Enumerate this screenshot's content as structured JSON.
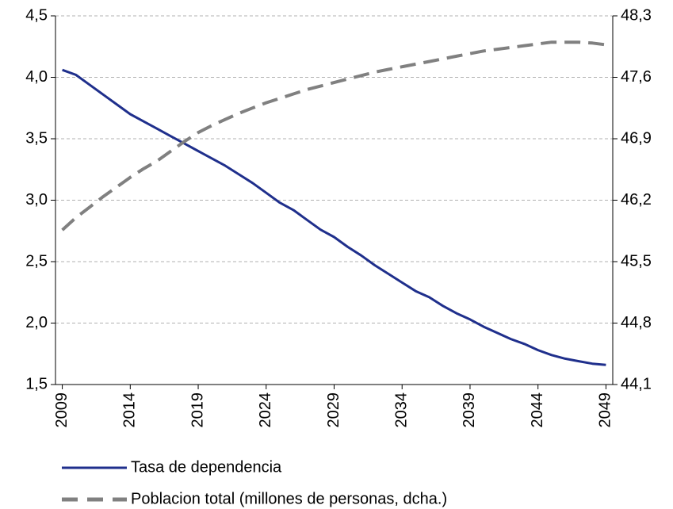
{
  "chart_data": {
    "type": "line",
    "x": [
      2009,
      2010,
      2011,
      2012,
      2013,
      2014,
      2015,
      2016,
      2017,
      2018,
      2019,
      2020,
      2021,
      2022,
      2023,
      2024,
      2025,
      2026,
      2027,
      2028,
      2029,
      2030,
      2031,
      2032,
      2033,
      2034,
      2035,
      2036,
      2037,
      2038,
      2039,
      2040,
      2041,
      2042,
      2043,
      2044,
      2045,
      2046,
      2047,
      2048,
      2049
    ],
    "xlim": [
      2008.5,
      2049.5
    ],
    "xticks": [
      2009,
      2014,
      2019,
      2024,
      2029,
      2034,
      2039,
      2044,
      2049
    ],
    "ylim": [
      1.5,
      4.5
    ],
    "yticks": [
      {
        "value": 1.5,
        "label": "1,5"
      },
      {
        "value": 2.0,
        "label": "2,0"
      },
      {
        "value": 2.5,
        "label": "2,5"
      },
      {
        "value": 3.0,
        "label": "3,0"
      },
      {
        "value": 3.5,
        "label": "3,5"
      },
      {
        "value": 4.0,
        "label": "4,0"
      },
      {
        "value": 4.5,
        "label": "4,5"
      }
    ],
    "y2lim": [
      44.1,
      48.3
    ],
    "y2ticks": [
      {
        "value": 44.1,
        "label": "44,1"
      },
      {
        "value": 44.8,
        "label": "44,8"
      },
      {
        "value": 45.5,
        "label": "45,5"
      },
      {
        "value": 46.2,
        "label": "46,2"
      },
      {
        "value": 46.9,
        "label": "46,9"
      },
      {
        "value": 47.6,
        "label": "47,6"
      },
      {
        "value": 48.3,
        "label": "48,3"
      }
    ],
    "grid": true,
    "legend": "bottom",
    "series": [
      {
        "name": "Tasa de dependencia",
        "color": "#1f2f8c",
        "style": "solid",
        "values": [
          4.06,
          4.02,
          3.94,
          3.86,
          3.78,
          3.7,
          3.64,
          3.58,
          3.52,
          3.46,
          3.4,
          3.34,
          3.28,
          3.21,
          3.14,
          3.06,
          2.98,
          2.92,
          2.84,
          2.76,
          2.7,
          2.62,
          2.55,
          2.47,
          2.4,
          2.33,
          2.26,
          2.21,
          2.14,
          2.08,
          2.03,
          1.97,
          1.92,
          1.87,
          1.83,
          1.78,
          1.74,
          1.71,
          1.69,
          1.67,
          1.66
        ]
      },
      {
        "name": "Poblacion total (millones de personas, dcha.)",
        "color": "#808080",
        "style": "dashed",
        "axis": "y2",
        "values": [
          45.86,
          46.0,
          46.12,
          46.24,
          46.35,
          46.46,
          46.56,
          46.65,
          46.76,
          46.87,
          46.97,
          47.05,
          47.12,
          47.19,
          47.25,
          47.31,
          47.36,
          47.41,
          47.46,
          47.5,
          47.54,
          47.58,
          47.62,
          47.66,
          47.69,
          47.72,
          47.75,
          47.78,
          47.81,
          47.84,
          47.87,
          47.9,
          47.92,
          47.94,
          47.96,
          47.98,
          48.0,
          48.0,
          48.0,
          47.99,
          47.97
        ]
      }
    ]
  }
}
